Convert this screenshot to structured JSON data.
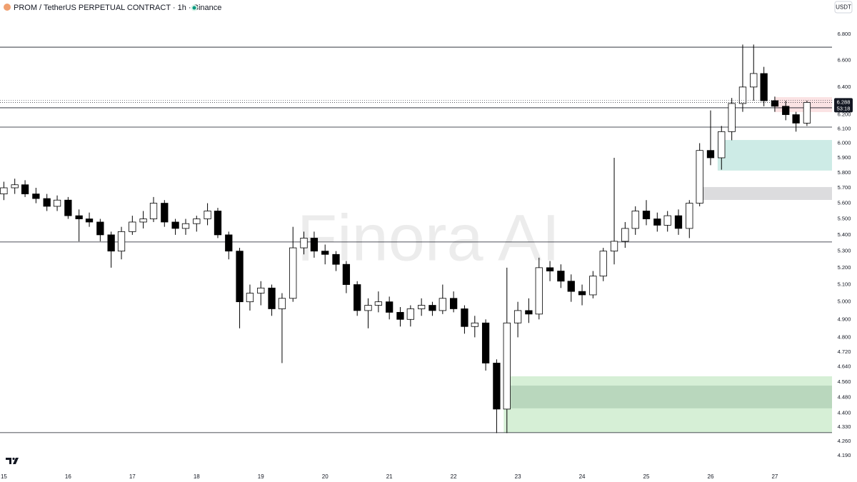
{
  "chart_data": {
    "type": "candlestick",
    "title": "PROM / TetherUS PERPETUAL CONTRACT · 1h · Binance",
    "currency": "USDT",
    "watermark": "Finora AI",
    "countdown": "53:18",
    "log_scale": true,
    "grid": false,
    "up_color": "#ffffff",
    "down_color": "#000000",
    "x": [
      15,
      15.17,
      15.33,
      15.5,
      15.67,
      15.83,
      16,
      16.17,
      16.33,
      16.5,
      16.67,
      16.83,
      17,
      17.17,
      17.33,
      17.5,
      17.67,
      17.83,
      18,
      18.17,
      18.33,
      18.5,
      18.67,
      18.83,
      19,
      19.17,
      19.33,
      19.5,
      19.67,
      19.83,
      20,
      20.17,
      20.33,
      20.5,
      20.67,
      20.83,
      21,
      21.17,
      21.33,
      21.5,
      21.67,
      21.83,
      22,
      22.17,
      22.33,
      22.5,
      22.67,
      22.83,
      23,
      23.17,
      23.33,
      23.5,
      23.67,
      23.83,
      24,
      24.17,
      24.33,
      24.5,
      24.67,
      24.83,
      25,
      25.17,
      25.33,
      25.5,
      25.67,
      25.83,
      26,
      26.17,
      26.33,
      26.5,
      26.67,
      26.83,
      27,
      27.17,
      27.33,
      27.5
    ],
    "open": [
      5.66,
      5.7,
      5.72,
      5.66,
      5.63,
      5.58,
      5.62,
      5.52,
      5.5,
      5.48,
      5.4,
      5.3,
      5.42,
      5.48,
      5.5,
      5.6,
      5.48,
      5.44,
      5.47,
      5.5,
      5.55,
      5.4,
      5.3,
      5.0,
      5.05,
      5.08,
      4.96,
      5.02,
      5.32,
      5.38,
      5.3,
      5.28,
      5.22,
      5.1,
      4.95,
      4.98,
      5.0,
      4.94,
      4.9,
      4.96,
      4.98,
      4.95,
      5.02,
      4.96,
      4.86,
      4.88,
      4.66,
      4.42,
      4.88,
      4.95,
      4.93,
      5.2,
      5.18,
      5.12,
      5.06,
      5.04,
      5.15,
      5.3,
      5.36,
      5.44,
      5.55,
      5.5,
      5.46,
      5.52,
      5.44,
      5.6,
      5.95,
      5.9,
      6.08,
      6.28,
      6.4,
      6.5,
      6.3,
      6.26,
      6.2,
      6.14
    ],
    "high": [
      5.74,
      5.76,
      5.75,
      5.7,
      5.66,
      5.65,
      5.64,
      5.56,
      5.54,
      5.5,
      5.42,
      5.45,
      5.52,
      5.55,
      5.64,
      5.62,
      5.5,
      5.5,
      5.52,
      5.6,
      5.57,
      5.42,
      5.32,
      5.1,
      5.12,
      5.1,
      5.05,
      5.45,
      5.42,
      5.42,
      5.34,
      5.3,
      5.24,
      5.12,
      5.02,
      5.06,
      5.03,
      4.97,
      4.98,
      5.02,
      5.0,
      5.1,
      5.06,
      4.98,
      4.92,
      4.9,
      4.68,
      5.2,
      5.0,
      5.02,
      5.26,
      5.24,
      5.22,
      5.16,
      5.1,
      5.18,
      5.32,
      5.9,
      5.48,
      5.58,
      5.62,
      5.54,
      5.55,
      5.56,
      5.62,
      6.0,
      6.23,
      6.12,
      6.32,
      6.72,
      6.72,
      6.55,
      6.33,
      6.3,
      6.22,
      6.3
    ],
    "low": [
      5.62,
      5.66,
      5.64,
      5.6,
      5.55,
      5.55,
      5.5,
      5.36,
      5.45,
      5.36,
      5.2,
      5.25,
      5.4,
      5.44,
      5.48,
      5.45,
      5.4,
      5.4,
      5.42,
      5.46,
      5.38,
      5.25,
      4.85,
      4.95,
      4.98,
      4.92,
      4.66,
      5.0,
      5.28,
      5.26,
      5.22,
      5.18,
      5.05,
      4.92,
      4.85,
      4.94,
      4.9,
      4.86,
      4.86,
      4.92,
      4.92,
      4.93,
      4.94,
      4.82,
      4.8,
      4.62,
      4.3,
      4.3,
      4.8,
      4.88,
      4.9,
      5.12,
      5.08,
      5.0,
      4.98,
      5.02,
      5.12,
      5.22,
      5.32,
      5.4,
      5.46,
      5.42,
      5.42,
      5.4,
      5.38,
      5.58,
      5.85,
      5.82,
      6.02,
      6.22,
      6.3,
      6.26,
      6.22,
      6.16,
      6.08,
      6.12
    ],
    "close": [
      5.7,
      5.72,
      5.66,
      5.63,
      5.58,
      5.62,
      5.52,
      5.5,
      5.48,
      5.4,
      5.3,
      5.42,
      5.48,
      5.5,
      5.6,
      5.48,
      5.44,
      5.47,
      5.5,
      5.55,
      5.4,
      5.3,
      5.0,
      5.05,
      5.08,
      4.96,
      5.02,
      5.32,
      5.38,
      5.3,
      5.28,
      5.22,
      5.1,
      4.95,
      4.98,
      5.0,
      4.94,
      4.9,
      4.96,
      4.98,
      4.95,
      5.02,
      4.96,
      4.86,
      4.88,
      4.66,
      4.42,
      4.88,
      4.95,
      4.93,
      5.2,
      5.18,
      5.12,
      5.06,
      5.04,
      5.15,
      5.3,
      5.36,
      5.44,
      5.55,
      5.5,
      5.46,
      5.52,
      5.44,
      5.6,
      5.95,
      5.9,
      6.08,
      6.28,
      6.4,
      6.5,
      6.3,
      6.26,
      6.2,
      6.14,
      6.288
    ],
    "levels": [
      6.7,
      6.249,
      6.112,
      5.356,
      4.302
    ],
    "zones": [
      {
        "x0": 27.0,
        "y0": 6.218,
        "y1": 6.326,
        "color": "#fbe3e4"
      },
      {
        "x0": 26.11,
        "y0": 5.814,
        "y1": 6.022,
        "color": "#cdebe6"
      },
      {
        "x0": 25.8,
        "y0": 5.621,
        "y1": 5.705,
        "color": "#dcdcde"
      },
      {
        "x0": 22.78,
        "y0": 4.302,
        "y1": 4.59,
        "color": "#d6efd6"
      },
      {
        "x0": 22.78,
        "y0": 4.424,
        "y1": 4.541,
        "color": "#b9d7bd"
      }
    ],
    "xlim": [
      14.94,
      27.89
    ],
    "xticks": [
      15,
      16,
      17,
      18,
      19,
      20,
      21,
      22,
      23,
      24,
      25,
      26,
      27
    ],
    "ylim": [
      4.132,
      6.958
    ],
    "yticks": [
      {
        "value": 6.8,
        "label": "6.800"
      },
      {
        "value": 6.6,
        "label": "6.600"
      },
      {
        "value": 6.4,
        "label": "6.400"
      },
      {
        "value": 6.2,
        "label": "6.200"
      },
      {
        "value": 6.1,
        "label": "6.100"
      },
      {
        "value": 6.0,
        "label": "6.000"
      },
      {
        "value": 5.9,
        "label": "5.900"
      },
      {
        "value": 5.8,
        "label": "5.800"
      },
      {
        "value": 5.7,
        "label": "5.700"
      },
      {
        "value": 5.6,
        "label": "5.600"
      },
      {
        "value": 5.5,
        "label": "5.500"
      },
      {
        "value": 5.4,
        "label": "5.400"
      },
      {
        "value": 5.3,
        "label": "5.300"
      },
      {
        "value": 5.2,
        "label": "5.200"
      },
      {
        "value": 5.1,
        "label": "5.100"
      },
      {
        "value": 5.0,
        "label": "5.000"
      },
      {
        "value": 4.9,
        "label": "4.900"
      },
      {
        "value": 4.8,
        "label": "4.800"
      },
      {
        "value": 4.72,
        "label": "4.720"
      },
      {
        "value": 4.64,
        "label": "4.640"
      },
      {
        "value": 4.56,
        "label": "4.560"
      },
      {
        "value": 4.48,
        "label": "4.480"
      },
      {
        "value": 4.4,
        "label": "4.400"
      },
      {
        "value": 4.33,
        "label": "4.330"
      },
      {
        "value": 4.26,
        "label": "4.260"
      },
      {
        "value": 4.19,
        "label": "4.190"
      }
    ]
  }
}
